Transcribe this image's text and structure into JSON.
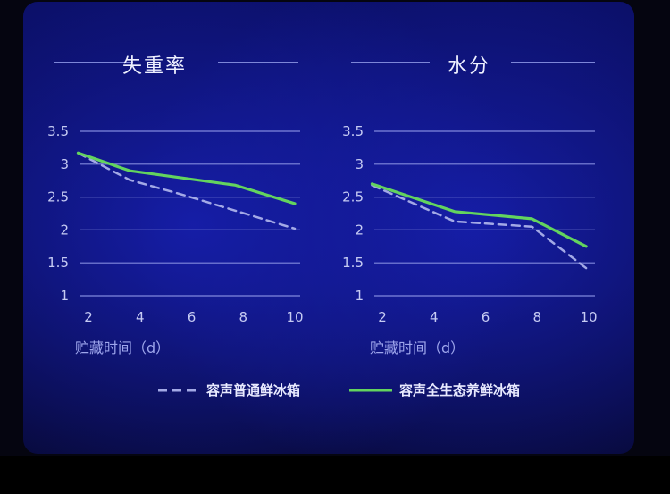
{
  "colors": {
    "series_dashed": "#a3a9e6",
    "series_solid": "#63d45e",
    "grid": "#8189dd",
    "tick": "#c6cbf3"
  },
  "legend": {
    "dashed_label": "容声普通鲜冰箱",
    "solid_label": "容声全生态养鲜冰箱"
  },
  "chart_data": [
    {
      "type": "line",
      "title": "失重率",
      "xlabel": "贮藏时间（d）",
      "ylabel": "",
      "xlim": [
        1.7,
        10
      ],
      "ylim": [
        1,
        3.5
      ],
      "xticks": [
        2,
        4,
        6,
        8,
        10
      ],
      "yticks": [
        1,
        1.5,
        2,
        2.5,
        3,
        3.5
      ],
      "tick_labels_x": [
        "2",
        "4",
        "6",
        "8",
        "10"
      ],
      "tick_labels_y": [
        "1",
        "1.5",
        "2",
        "2.5",
        "3",
        "3.5"
      ],
      "series": [
        {
          "name": "容声普通鲜冰箱",
          "style": "dashed",
          "x": [
            1.6,
            3.6,
            5.7,
            10
          ],
          "y": [
            3.17,
            2.76,
            2.53,
            2.02
          ]
        },
        {
          "name": "容声全生态养鲜冰箱",
          "style": "solid",
          "x": [
            1.6,
            3.6,
            7.7,
            10
          ],
          "y": [
            3.17,
            2.9,
            2.68,
            2.4
          ]
        }
      ]
    },
    {
      "type": "line",
      "title": "水分",
      "xlabel": "贮藏时间（d）",
      "ylabel": "",
      "xlim": [
        1.7,
        10
      ],
      "ylim": [
        1,
        3.5
      ],
      "xticks": [
        2,
        4,
        6,
        8,
        10
      ],
      "yticks": [
        1,
        1.5,
        2,
        2.5,
        3,
        3.5
      ],
      "tick_labels_x": [
        "2",
        "4",
        "6",
        "8",
        "10"
      ],
      "tick_labels_y": [
        "1",
        "1.5",
        "2",
        "2.5",
        "3",
        "3.5"
      ],
      "series": [
        {
          "name": "容声普通鲜冰箱",
          "style": "dashed",
          "x": [
            1.6,
            4.8,
            7.8,
            9.9
          ],
          "y": [
            2.68,
            2.13,
            2.05,
            1.42
          ]
        },
        {
          "name": "容声全生态养鲜冰箱",
          "style": "solid",
          "x": [
            1.6,
            4.8,
            7.8,
            9.9
          ],
          "y": [
            2.7,
            2.28,
            2.17,
            1.75
          ]
        }
      ]
    }
  ]
}
